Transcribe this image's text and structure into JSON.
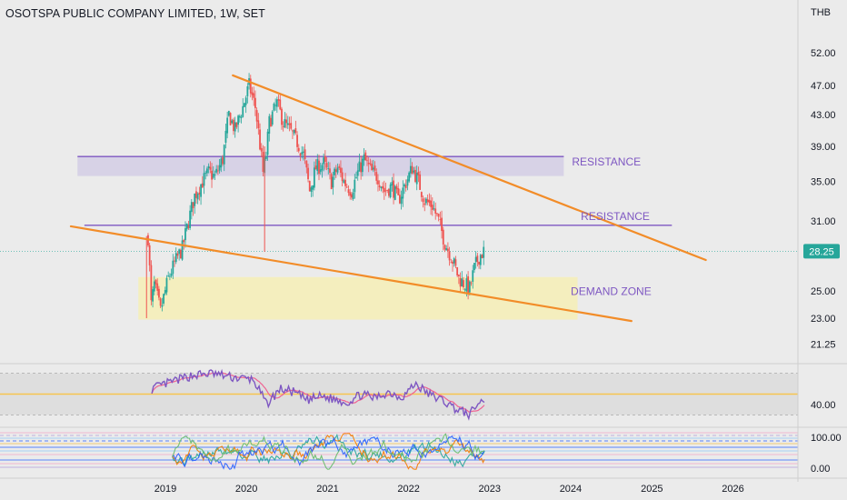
{
  "header": {
    "title": "OSOTSPA PUBLIC COMPANY LIMITED, 1W, SET",
    "currency": "THB"
  },
  "colors": {
    "up": "#26a69a",
    "down": "#ef5350",
    "trendline": "#f28c28",
    "resistance": "#7e57c2",
    "resistance_zone": "#d6d1e6",
    "demand_zone": "#f4eebc",
    "rsi": "#7e57c2",
    "rsi_ma": "#f06292",
    "price_badge": "#26a69a"
  },
  "chart_data": {
    "type": "candlestick",
    "timeframe": "1W",
    "x_range": [
      "2018-04-01",
      "2026-12-01"
    ],
    "y_scale": "log",
    "y_range": [
      19.5,
      55
    ],
    "x_ticks": [
      "2019",
      "2020",
      "2021",
      "2022",
      "2023",
      "2024",
      "2025",
      "2026"
    ],
    "y_ticks": [
      52.0,
      47.0,
      43.0,
      39.0,
      35.0,
      31.0,
      25.0,
      23.0,
      21.25
    ],
    "last_price": 28.25,
    "price_path": [
      [
        "2018-10-15",
        29.5
      ],
      [
        "2018-10-29",
        24.0
      ],
      [
        "2018-11-12",
        25.5
      ],
      [
        "2018-12-10",
        23.5
      ],
      [
        "2019-01-14",
        26.0
      ],
      [
        "2019-02-18",
        27.5
      ],
      [
        "2019-03-18",
        28.5
      ],
      [
        "2019-04-15",
        31.0
      ],
      [
        "2019-05-13",
        33.5
      ],
      [
        "2019-06-17",
        35.0
      ],
      [
        "2019-07-15",
        36.0
      ],
      [
        "2019-08-12",
        35.5
      ],
      [
        "2019-09-16",
        37.5
      ],
      [
        "2019-10-14",
        43.0
      ],
      [
        "2019-11-11",
        41.0
      ],
      [
        "2019-12-16",
        44.0
      ],
      [
        "2020-01-13",
        47.0
      ],
      [
        "2020-02-10",
        44.0
      ],
      [
        "2020-03-16",
        36.0
      ],
      [
        "2020-03-30",
        38.0
      ],
      [
        "2020-04-13",
        42.0
      ],
      [
        "2020-05-18",
        44.5
      ],
      [
        "2020-06-15",
        42.0
      ],
      [
        "2020-07-13",
        41.0
      ],
      [
        "2020-08-17",
        39.5
      ],
      [
        "2020-09-14",
        38.0
      ],
      [
        "2020-10-12",
        34.0
      ],
      [
        "2020-11-09",
        36.5
      ],
      [
        "2020-12-14",
        37.0
      ],
      [
        "2021-01-18",
        35.0
      ],
      [
        "2021-02-15",
        36.5
      ],
      [
        "2021-03-15",
        35.0
      ],
      [
        "2021-04-19",
        34.0
      ],
      [
        "2021-05-17",
        36.0
      ],
      [
        "2021-06-14",
        37.5
      ],
      [
        "2021-07-19",
        36.0
      ],
      [
        "2021-08-16",
        35.5
      ],
      [
        "2021-09-13",
        34.0
      ],
      [
        "2021-10-18",
        34.5
      ],
      [
        "2021-11-15",
        33.0
      ],
      [
        "2021-12-13",
        34.5
      ],
      [
        "2022-01-17",
        36.5
      ],
      [
        "2022-02-14",
        35.0
      ],
      [
        "2022-03-14",
        33.0
      ],
      [
        "2022-04-18",
        32.5
      ],
      [
        "2022-05-16",
        31.0
      ],
      [
        "2022-06-13",
        29.0
      ],
      [
        "2022-07-18",
        27.5
      ],
      [
        "2022-08-15",
        26.0
      ],
      [
        "2022-09-12",
        25.5
      ],
      [
        "2022-10-03",
        25.2
      ],
      [
        "2022-10-24",
        26.8
      ],
      [
        "2022-11-14",
        27.8
      ],
      [
        "2022-12-05",
        28.25
      ]
    ],
    "wick_events": [
      {
        "date": "2018-10-08",
        "high": 29.6,
        "low": 23.0
      },
      {
        "date": "2020-03-23",
        "high": 39.0,
        "low": 28.2
      }
    ],
    "trendlines": [
      {
        "from": [
          "2019-11-01",
          48.5
        ],
        "to": [
          "2025-09-01",
          27.5
        ]
      },
      {
        "from": [
          "2017-11-01",
          30.5
        ],
        "to": [
          "2024-10-01",
          22.8
        ]
      }
    ],
    "horizontal_lines": [
      {
        "price": 37.8,
        "from": "2017-12-01",
        "to": "2023-12-01"
      },
      {
        "price": 30.6,
        "from": "2018-01-01",
        "to": "2025-04-01"
      }
    ],
    "zones": [
      {
        "label": "RESISTANCE",
        "top": 37.8,
        "bottom": 35.6,
        "from": "2017-12-01",
        "to": "2023-12-01"
      },
      {
        "label": "DEMAND ZONE",
        "top": 26.1,
        "bottom": 22.9,
        "from": "2018-09-01",
        "to": "2024-02-01"
      }
    ],
    "annotations": [
      {
        "text": "RESISTANCE",
        "date": "2024-06-10",
        "price": 36.8
      },
      {
        "text": "RESISTANCE",
        "date": "2024-07-20",
        "price": 31.1
      },
      {
        "text": "DEMAND ZONE",
        "date": "2024-07-01",
        "price": 24.7
      }
    ],
    "rsi": {
      "axis_label": "40.00",
      "path": [
        [
          "2018-11-01",
          55
        ],
        [
          "2019-02-01",
          62
        ],
        [
          "2019-05-01",
          68
        ],
        [
          "2019-08-01",
          70
        ],
        [
          "2019-11-01",
          66
        ],
        [
          "2020-02-01",
          64
        ],
        [
          "2020-04-01",
          40
        ],
        [
          "2020-06-01",
          55
        ],
        [
          "2020-08-01",
          52
        ],
        [
          "2020-10-01",
          44
        ],
        [
          "2020-12-01",
          48
        ],
        [
          "2021-02-01",
          45
        ],
        [
          "2021-04-01",
          42
        ],
        [
          "2021-06-01",
          50
        ],
        [
          "2021-08-01",
          46
        ],
        [
          "2021-10-01",
          52
        ],
        [
          "2021-12-01",
          47
        ],
        [
          "2022-02-01",
          60
        ],
        [
          "2022-04-01",
          50
        ],
        [
          "2022-06-01",
          44
        ],
        [
          "2022-08-01",
          36
        ],
        [
          "2022-10-01",
          30
        ],
        [
          "2022-11-15",
          42
        ],
        [
          "2022-12-10",
          44
        ]
      ]
    },
    "stochastic": {
      "y_ticks": [
        "100.00",
        "0.00"
      ]
    }
  }
}
